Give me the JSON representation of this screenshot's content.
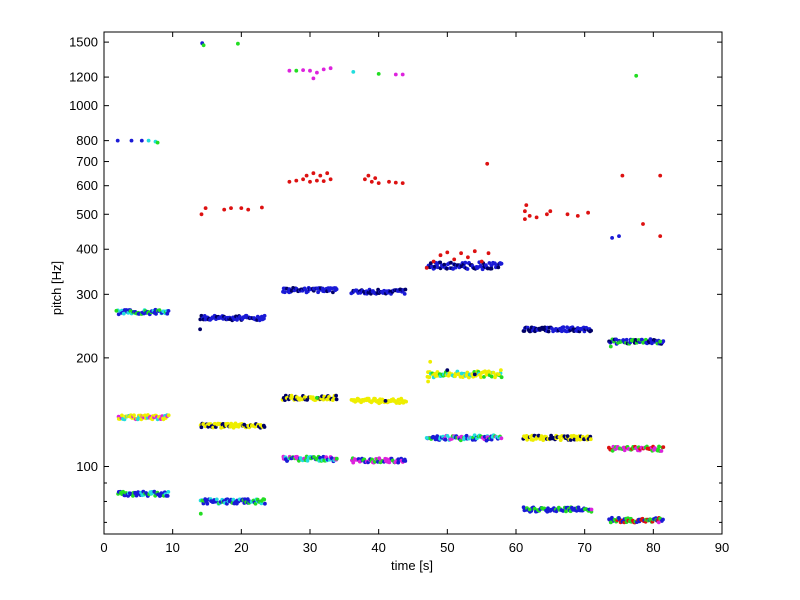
{
  "chart_data": {
    "type": "scatter",
    "xlabel": "time [s]",
    "ylabel": "pitch [Hz]",
    "xlim": [
      0,
      90
    ],
    "ylim": [
      65,
      1600
    ],
    "yscale": "log",
    "grid": false,
    "x_ticks": [
      0,
      10,
      20,
      30,
      40,
      50,
      60,
      70,
      80,
      90
    ],
    "y_ticks": [
      100,
      200,
      300,
      400,
      500,
      600,
      700,
      800,
      1000,
      1200,
      1500
    ],
    "y_minor_ticks": [
      70,
      80,
      90
    ],
    "colors": {
      "blue": "#1a1ad6",
      "green": "#22dd22",
      "cyan": "#22dddd",
      "magenta": "#dd22dd",
      "yellow": "#eeee00",
      "red": "#dd1111",
      "navy": "#000066"
    },
    "segments": [
      {
        "t": [
          2,
          9.5
        ],
        "bands": [
          {
            "f": 268,
            "c": [
              "blue",
              "blue",
              "green",
              "cyan"
            ]
          },
          {
            "f": 137,
            "c": [
              "yellow",
              "yellow",
              "magenta",
              "cyan"
            ]
          },
          {
            "f": 84,
            "c": [
              "blue",
              "blue",
              "cyan",
              "green"
            ]
          }
        ]
      },
      {
        "t": [
          14,
          23.5
        ],
        "bands": [
          {
            "f": 258,
            "c": [
              "blue",
              "blue",
              "blue",
              "navy"
            ]
          },
          {
            "f": 130,
            "c": [
              "yellow",
              "yellow",
              "navy"
            ]
          },
          {
            "f": 80,
            "c": [
              "blue",
              "blue",
              "cyan",
              "green"
            ]
          }
        ]
      },
      {
        "t": [
          26,
          34
        ],
        "bands": [
          {
            "f": 308,
            "c": [
              "blue",
              "blue",
              "navy"
            ]
          },
          {
            "f": 155,
            "c": [
              "yellow",
              "yellow",
              "navy"
            ]
          },
          {
            "f": 105,
            "c": [
              "cyan",
              "magenta",
              "blue",
              "green"
            ]
          }
        ]
      },
      {
        "t": [
          36,
          44
        ],
        "bands": [
          {
            "f": 305,
            "c": [
              "blue",
              "blue",
              "navy"
            ]
          },
          {
            "f": 152,
            "c": [
              "yellow",
              "yellow"
            ]
          },
          {
            "f": 104,
            "c": [
              "magenta",
              "magenta",
              "green",
              "blue"
            ]
          }
        ]
      },
      {
        "t": [
          47,
          58
        ],
        "bands": [
          {
            "f": 360,
            "spread": 0.045,
            "c": [
              "blue",
              "blue",
              "navy"
            ]
          },
          {
            "f": 180,
            "spread": 0.04,
            "c": [
              "yellow",
              "yellow",
              "green",
              "cyan"
            ]
          },
          {
            "f": 120,
            "spread": 0.035,
            "c": [
              "cyan",
              "magenta",
              "green",
              "blue"
            ]
          }
        ]
      },
      {
        "t": [
          61,
          71
        ],
        "bands": [
          {
            "f": 240,
            "c": [
              "blue",
              "blue",
              "navy"
            ]
          },
          {
            "f": 120,
            "c": [
              "yellow",
              "yellow",
              "navy"
            ]
          },
          {
            "f": 76,
            "c": [
              "blue",
              "blue",
              "green"
            ]
          }
        ]
      },
      {
        "t": [
          73.5,
          81.5
        ],
        "bands": [
          {
            "f": 222,
            "c": [
              "blue",
              "green",
              "navy",
              "blue"
            ]
          },
          {
            "f": 112,
            "c": [
              "red",
              "magenta",
              "green"
            ]
          },
          {
            "f": 71,
            "c": [
              "red",
              "green",
              "blue"
            ]
          }
        ]
      }
    ],
    "points": [
      [
        2,
        800,
        "blue"
      ],
      [
        4,
        800,
        "blue"
      ],
      [
        5.5,
        800,
        "blue"
      ],
      [
        6.5,
        800,
        "cyan"
      ],
      [
        7.5,
        795,
        "cyan"
      ],
      [
        7.8,
        790,
        "green"
      ],
      [
        14.3,
        1490,
        "blue"
      ],
      [
        14.5,
        1470,
        "green"
      ],
      [
        19.5,
        1485,
        "green"
      ],
      [
        27,
        1250,
        "magenta"
      ],
      [
        28,
        1250,
        "green"
      ],
      [
        29,
        1255,
        "magenta"
      ],
      [
        30,
        1250,
        "magenta"
      ],
      [
        30.5,
        1190,
        "magenta"
      ],
      [
        31,
        1235,
        "magenta"
      ],
      [
        32,
        1260,
        "magenta"
      ],
      [
        33,
        1270,
        "magenta"
      ],
      [
        36.3,
        1240,
        "cyan"
      ],
      [
        40,
        1225,
        "green"
      ],
      [
        42.5,
        1220,
        "magenta"
      ],
      [
        43.5,
        1220,
        "magenta"
      ],
      [
        77.5,
        1210,
        "green"
      ],
      [
        14.2,
        500,
        "red"
      ],
      [
        14.8,
        520,
        "red"
      ],
      [
        17.5,
        515,
        "red"
      ],
      [
        18.5,
        520,
        "red"
      ],
      [
        20,
        520,
        "red"
      ],
      [
        21,
        515,
        "red"
      ],
      [
        23,
        522,
        "red"
      ],
      [
        27,
        615,
        "red"
      ],
      [
        28,
        620,
        "red"
      ],
      [
        29,
        625,
        "red"
      ],
      [
        29.5,
        640,
        "red"
      ],
      [
        30,
        615,
        "red"
      ],
      [
        30.5,
        650,
        "red"
      ],
      [
        31,
        620,
        "red"
      ],
      [
        31.5,
        640,
        "red"
      ],
      [
        32,
        618,
        "red"
      ],
      [
        32.5,
        650,
        "red"
      ],
      [
        33,
        625,
        "red"
      ],
      [
        38,
        625,
        "red"
      ],
      [
        38.5,
        640,
        "red"
      ],
      [
        39,
        615,
        "red"
      ],
      [
        39.5,
        630,
        "red"
      ],
      [
        40,
        610,
        "red"
      ],
      [
        41.5,
        615,
        "red"
      ],
      [
        42.5,
        612,
        "red"
      ],
      [
        43.5,
        610,
        "red"
      ],
      [
        47,
        355,
        "red"
      ],
      [
        48,
        370,
        "red"
      ],
      [
        49,
        385,
        "red"
      ],
      [
        50,
        392,
        "red"
      ],
      [
        51,
        375,
        "red"
      ],
      [
        52,
        390,
        "red"
      ],
      [
        53,
        380,
        "red"
      ],
      [
        54,
        395,
        "red"
      ],
      [
        55,
        370,
        "red"
      ],
      [
        56,
        390,
        "red"
      ],
      [
        55.8,
        690,
        "red"
      ],
      [
        61.3,
        485,
        "red"
      ],
      [
        61.3,
        510,
        "red"
      ],
      [
        61.5,
        530,
        "red"
      ],
      [
        62,
        495,
        "red"
      ],
      [
        63,
        490,
        "red"
      ],
      [
        64.5,
        500,
        "red"
      ],
      [
        65,
        510,
        "red"
      ],
      [
        67.5,
        500,
        "red"
      ],
      [
        69,
        495,
        "red"
      ],
      [
        70.5,
        505,
        "red"
      ],
      [
        75.5,
        640,
        "red"
      ],
      [
        81,
        640,
        "red"
      ],
      [
        78.5,
        470,
        "red"
      ],
      [
        81,
        435,
        "red"
      ],
      [
        74,
        430,
        "blue"
      ],
      [
        75,
        435,
        "blue"
      ],
      [
        1.8,
        270,
        "green"
      ],
      [
        14,
        240,
        "navy"
      ],
      [
        14.1,
        74,
        "green"
      ],
      [
        54,
        180,
        "navy"
      ],
      [
        50,
        185,
        "navy"
      ],
      [
        41,
        152,
        "navy"
      ],
      [
        31,
        155,
        "green"
      ],
      [
        62,
        76,
        "green"
      ],
      [
        71,
        76,
        "magenta"
      ],
      [
        73.8,
        70,
        "green"
      ],
      [
        80.8,
        70,
        "magenta"
      ],
      [
        73.8,
        215,
        "green"
      ],
      [
        81,
        222,
        "green"
      ],
      [
        47,
        120,
        "cyan"
      ],
      [
        47.2,
        172,
        "yellow"
      ],
      [
        47.5,
        195,
        "yellow"
      ],
      [
        57.5,
        180,
        "yellow"
      ],
      [
        57.8,
        185,
        "yellow"
      ]
    ]
  }
}
